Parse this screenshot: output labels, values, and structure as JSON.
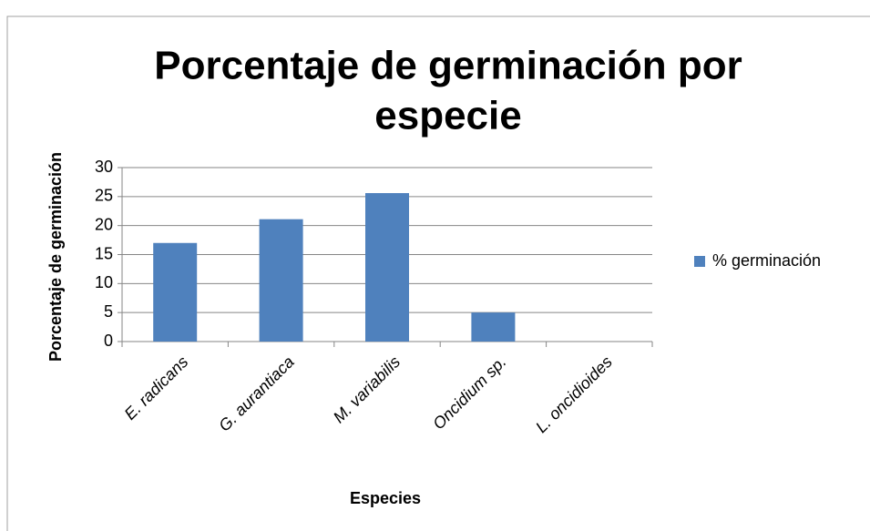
{
  "chart_data": {
    "type": "bar",
    "title": [
      "Porcentaje de germinación por",
      "especie"
    ],
    "x_label": "Especies",
    "y_label": "Porcentaje de germinación",
    "categories": [
      "E. radicans",
      "G. aurantiaca",
      "M. variabilis",
      "Oncidium sp.",
      "L. oncidioides"
    ],
    "series": [
      {
        "name": "% germinación",
        "color": "#4f81bd",
        "values": [
          17,
          21.1,
          25.6,
          5,
          0
        ]
      }
    ],
    "ylim": [
      0,
      30
    ],
    "yticks": [
      0,
      5,
      10,
      15,
      20,
      25,
      30
    ],
    "grid": true,
    "legend": "right"
  }
}
